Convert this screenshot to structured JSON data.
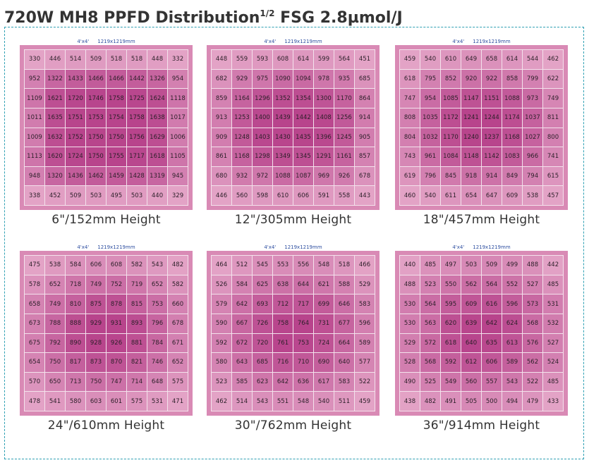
{
  "title": {
    "main": "720W MH8  PPFD Distribution",
    "superscript": "1/2",
    "suffix": " FSG 2.8µmol/J"
  },
  "colors": {
    "panel_background": "#d98ab5",
    "grid_line": "#f4e2ec",
    "dashed_frame": "#2fa0b3",
    "dimension_text": "#2e4fa0",
    "cell_low": "#e3a3c6",
    "cell_high": "#b8448c"
  },
  "chart_data": [
    {
      "type": "heatmap",
      "dims_left": "4'x4'",
      "dims_right": "1219x1219mm",
      "label": "6\"/152mm Height",
      "values": [
        [
          330,
          446,
          514,
          509,
          518,
          518,
          448,
          332
        ],
        [
          952,
          1322,
          1433,
          1466,
          1466,
          1442,
          1326,
          954
        ],
        [
          1109,
          1621,
          1720,
          1746,
          1758,
          1725,
          1624,
          1118
        ],
        [
          1011,
          1635,
          1751,
          1753,
          1754,
          1758,
          1638,
          1017
        ],
        [
          1009,
          1632,
          1752,
          1750,
          1750,
          1756,
          1629,
          1006
        ],
        [
          1113,
          1620,
          1724,
          1750,
          1755,
          1717,
          1618,
          1105
        ],
        [
          948,
          1320,
          1436,
          1462,
          1459,
          1428,
          1319,
          945
        ],
        [
          338,
          452,
          509,
          503,
          495,
          503,
          440,
          329
        ]
      ]
    },
    {
      "type": "heatmap",
      "dims_left": "4'x4'",
      "dims_right": "1219x1219mm",
      "label": "12\"/305mm Height",
      "values": [
        [
          448,
          559,
          593,
          608,
          614,
          599,
          564,
          451
        ],
        [
          682,
          929,
          975,
          1090,
          1094,
          978,
          935,
          685
        ],
        [
          859,
          1164,
          1296,
          1352,
          1354,
          1300,
          1170,
          864
        ],
        [
          913,
          1253,
          1400,
          1439,
          1442,
          1408,
          1256,
          914
        ],
        [
          909,
          1248,
          1403,
          1430,
          1435,
          1396,
          1245,
          905
        ],
        [
          861,
          1168,
          1298,
          1349,
          1345,
          1291,
          1161,
          857
        ],
        [
          680,
          932,
          972,
          1088,
          1087,
          969,
          926,
          678
        ],
        [
          446,
          560,
          598,
          610,
          606,
          591,
          558,
          443
        ]
      ]
    },
    {
      "type": "heatmap",
      "dims_left": "4'x4'",
      "dims_right": "1219x1219mm",
      "label": "18\"/457mm Height",
      "values": [
        [
          459,
          540,
          610,
          649,
          658,
          614,
          544,
          462
        ],
        [
          618,
          795,
          852,
          920,
          922,
          858,
          799,
          622
        ],
        [
          747,
          954,
          1085,
          1147,
          1151,
          1088,
          973,
          749
        ],
        [
          808,
          1035,
          1172,
          1241,
          1244,
          1174,
          1037,
          811
        ],
        [
          804,
          1032,
          1170,
          1240,
          1237,
          1168,
          1027,
          800
        ],
        [
          743,
          961,
          1084,
          1148,
          1142,
          1083,
          966,
          741
        ],
        [
          619,
          796,
          845,
          918,
          914,
          849,
          794,
          615
        ],
        [
          460,
          540,
          611,
          654,
          647,
          609,
          538,
          457
        ]
      ]
    },
    {
      "type": "heatmap",
      "dims_left": "4'x4'",
      "dims_right": "1219x1219mm",
      "label": "24\"/610mm Height",
      "values": [
        [
          475,
          538,
          584,
          606,
          608,
          582,
          543,
          482
        ],
        [
          578,
          652,
          718,
          749,
          752,
          719,
          652,
          582
        ],
        [
          658,
          749,
          810,
          875,
          878,
          815,
          753,
          660
        ],
        [
          673,
          788,
          888,
          929,
          931,
          893,
          796,
          678
        ],
        [
          675,
          792,
          890,
          928,
          926,
          881,
          784,
          671
        ],
        [
          654,
          750,
          817,
          873,
          870,
          821,
          746,
          652
        ],
        [
          570,
          650,
          713,
          750,
          747,
          714,
          648,
          575
        ],
        [
          478,
          541,
          580,
          603,
          601,
          575,
          531,
          471
        ]
      ]
    },
    {
      "type": "heatmap",
      "dims_left": "4'x4'",
      "dims_right": "1219x1219mm",
      "label": "30\"/762mm Height",
      "values": [
        [
          464,
          512,
          545,
          553,
          556,
          548,
          518,
          466
        ],
        [
          526,
          584,
          625,
          638,
          644,
          621,
          588,
          529
        ],
        [
          579,
          642,
          693,
          712,
          717,
          699,
          646,
          583
        ],
        [
          590,
          667,
          726,
          758,
          764,
          731,
          677,
          596
        ],
        [
          592,
          672,
          720,
          761,
          753,
          724,
          664,
          589
        ],
        [
          580,
          643,
          685,
          716,
          710,
          690,
          640,
          577
        ],
        [
          523,
          585,
          623,
          642,
          636,
          617,
          583,
          522
        ],
        [
          462,
          514,
          543,
          551,
          548,
          540,
          511,
          459
        ]
      ]
    },
    {
      "type": "heatmap",
      "dims_left": "4'x4'",
      "dims_right": "1219x1219mm",
      "label": "36\"/914mm Height",
      "values": [
        [
          440,
          485,
          497,
          503,
          509,
          499,
          488,
          442
        ],
        [
          488,
          523,
          550,
          562,
          564,
          552,
          527,
          485
        ],
        [
          530,
          564,
          595,
          609,
          616,
          596,
          573,
          531
        ],
        [
          530,
          563,
          620,
          639,
          642,
          624,
          568,
          532
        ],
        [
          529,
          572,
          618,
          640,
          635,
          613,
          576,
          527
        ],
        [
          528,
          568,
          592,
          612,
          606,
          589,
          562,
          524
        ],
        [
          490,
          525,
          549,
          560,
          557,
          543,
          522,
          485
        ],
        [
          438,
          482,
          491,
          505,
          500,
          494,
          479,
          433
        ]
      ]
    }
  ]
}
